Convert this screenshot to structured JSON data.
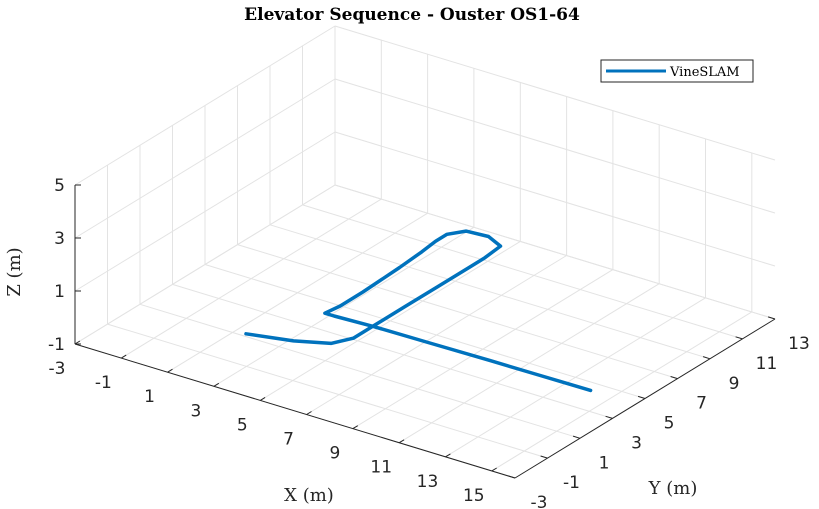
{
  "chart_data": {
    "type": "line",
    "projection": "3d",
    "title": "Elevator Sequence - Ouster OS1-64",
    "xlabel": "X (m)",
    "ylabel": "Y (m)",
    "zlabel": "Z (m)",
    "xlim": [
      -3,
      16
    ],
    "ylim": [
      -3,
      13
    ],
    "zlim": [
      -1,
      5
    ],
    "xticks": [
      -3,
      -1,
      1,
      3,
      5,
      7,
      9,
      11,
      13,
      15
    ],
    "yticks": [
      -3,
      -1,
      1,
      3,
      5,
      7,
      9,
      11,
      13
    ],
    "zticks": [
      -1,
      1,
      3,
      5
    ],
    "xtick_labels": [
      "-3",
      "-1",
      "1",
      "3",
      "5",
      "7",
      "9",
      "11",
      "13",
      "15"
    ],
    "ytick_labels": [
      "-3",
      "-1",
      "1",
      "3",
      "5",
      "7",
      "9",
      "11",
      "13"
    ],
    "ztick_labels": [
      "-1",
      "1",
      "3",
      "5"
    ],
    "grid": true,
    "legend": {
      "location": "top-right",
      "entries": [
        "VineSLAM"
      ]
    },
    "series": [
      {
        "name": "VineSLAM",
        "color": "#0072BD",
        "points": [
          [
            2.7,
            -0.6,
            0
          ],
          [
            4.4,
            -0.1,
            0
          ],
          [
            5.6,
            0.5,
            0
          ],
          [
            6.0,
            1.3,
            0
          ],
          [
            6.0,
            2.5,
            0
          ],
          [
            6.0,
            4.5,
            0
          ],
          [
            6.0,
            6.5,
            0
          ],
          [
            6.0,
            8.5,
            0
          ],
          [
            6.0,
            9.4,
            0
          ],
          [
            5.9,
            10.5,
            0
          ],
          [
            5.1,
            10.9,
            0
          ],
          [
            4.2,
            10.8,
            0
          ],
          [
            3.8,
            10.2,
            0
          ],
          [
            3.8,
            9.5,
            0
          ],
          [
            3.9,
            8.5,
            0
          ],
          [
            4.0,
            7.0,
            0
          ],
          [
            4.1,
            4.6,
            0
          ],
          [
            4.1,
            3.2,
            0
          ],
          [
            4.0,
            2.4,
            0
          ],
          [
            4.4,
            2.4,
            0
          ],
          [
            6.0,
            2.5,
            0
          ],
          [
            8.5,
            2.55,
            0
          ],
          [
            11.0,
            2.6,
            0
          ],
          [
            13.0,
            2.62,
            0
          ],
          [
            15.3,
            2.65,
            0
          ]
        ]
      }
    ]
  }
}
